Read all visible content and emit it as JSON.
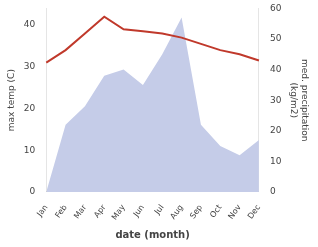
{
  "chart_data": {
    "type": "line",
    "categories": [
      "Jan",
      "Feb",
      "Mar",
      "Apr",
      "May",
      "Jun",
      "Jul",
      "Aug",
      "Sep",
      "Oct",
      "Nov",
      "Dec"
    ],
    "series": [
      {
        "type": "area",
        "color": "#c5cce8",
        "axis": "y2",
        "values": [
          0,
          22,
          28,
          38,
          40,
          35,
          45,
          57,
          22,
          15,
          12,
          17
        ]
      },
      {
        "type": "line",
        "color": "#c0392b",
        "values": [
          31,
          34,
          38,
          42,
          39,
          38.5,
          38,
          37,
          35.5,
          34,
          33,
          31.5
        ]
      }
    ],
    "xlabel": "date (month)",
    "ylabel": "max temp (C)",
    "y2label": "med. precipitation\n(kg/m2)",
    "ylim": [
      0,
      44
    ],
    "yticks": [
      0,
      10,
      20,
      30,
      40
    ],
    "y2lim": [
      0,
      60
    ],
    "y2ticks": [
      0,
      10,
      20,
      30,
      40,
      50,
      60
    ],
    "grid": false,
    "legend": false
  }
}
